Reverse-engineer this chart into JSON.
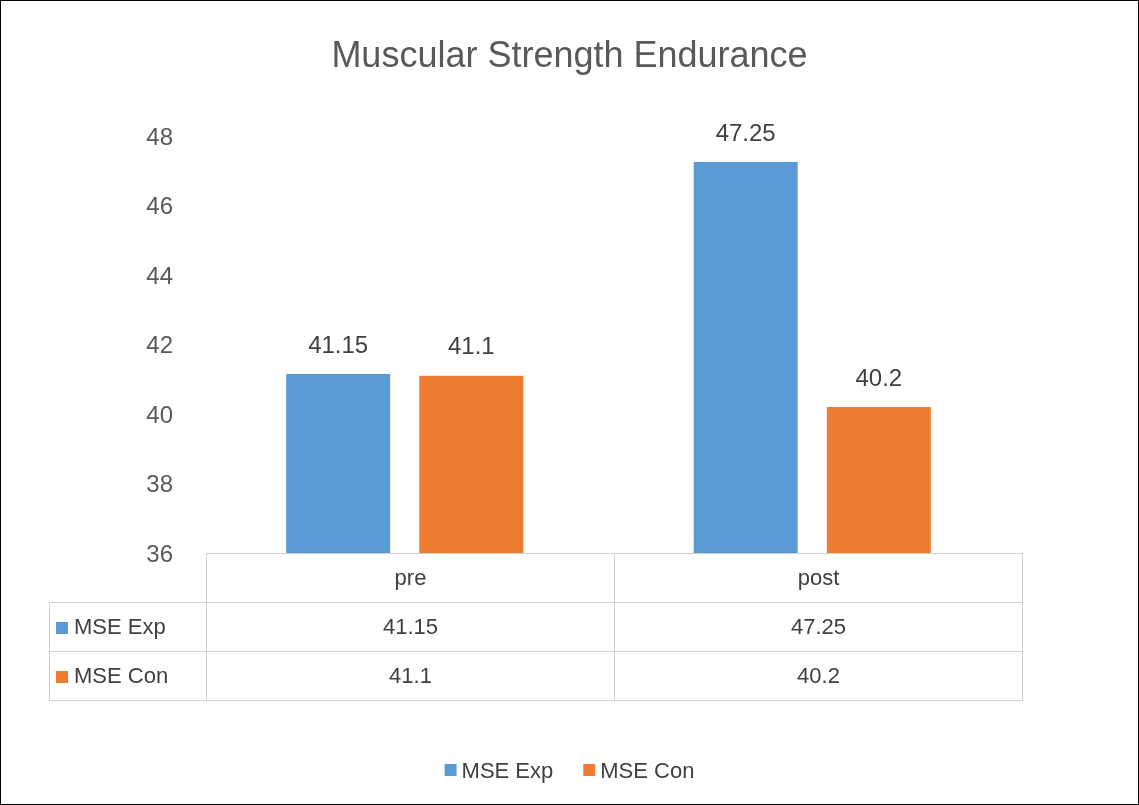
{
  "chart_data": {
    "type": "bar",
    "title": "Muscular Strength Endurance",
    "categories": [
      "pre",
      "post"
    ],
    "series": [
      {
        "name": "MSE Exp",
        "color": "#5b9bd5",
        "values": [
          41.15,
          47.25
        ]
      },
      {
        "name": "MSE Con",
        "color": "#ed7d31",
        "values": [
          41.1,
          40.2
        ]
      }
    ],
    "ylim": [
      36,
      48
    ],
    "yticks": [
      36,
      38,
      40,
      42,
      44,
      46,
      48
    ],
    "grid": false,
    "legend": "bottom",
    "data_labels": true,
    "annotations": [
      "41.15",
      "47.25",
      "41.1",
      "40.2"
    ]
  }
}
